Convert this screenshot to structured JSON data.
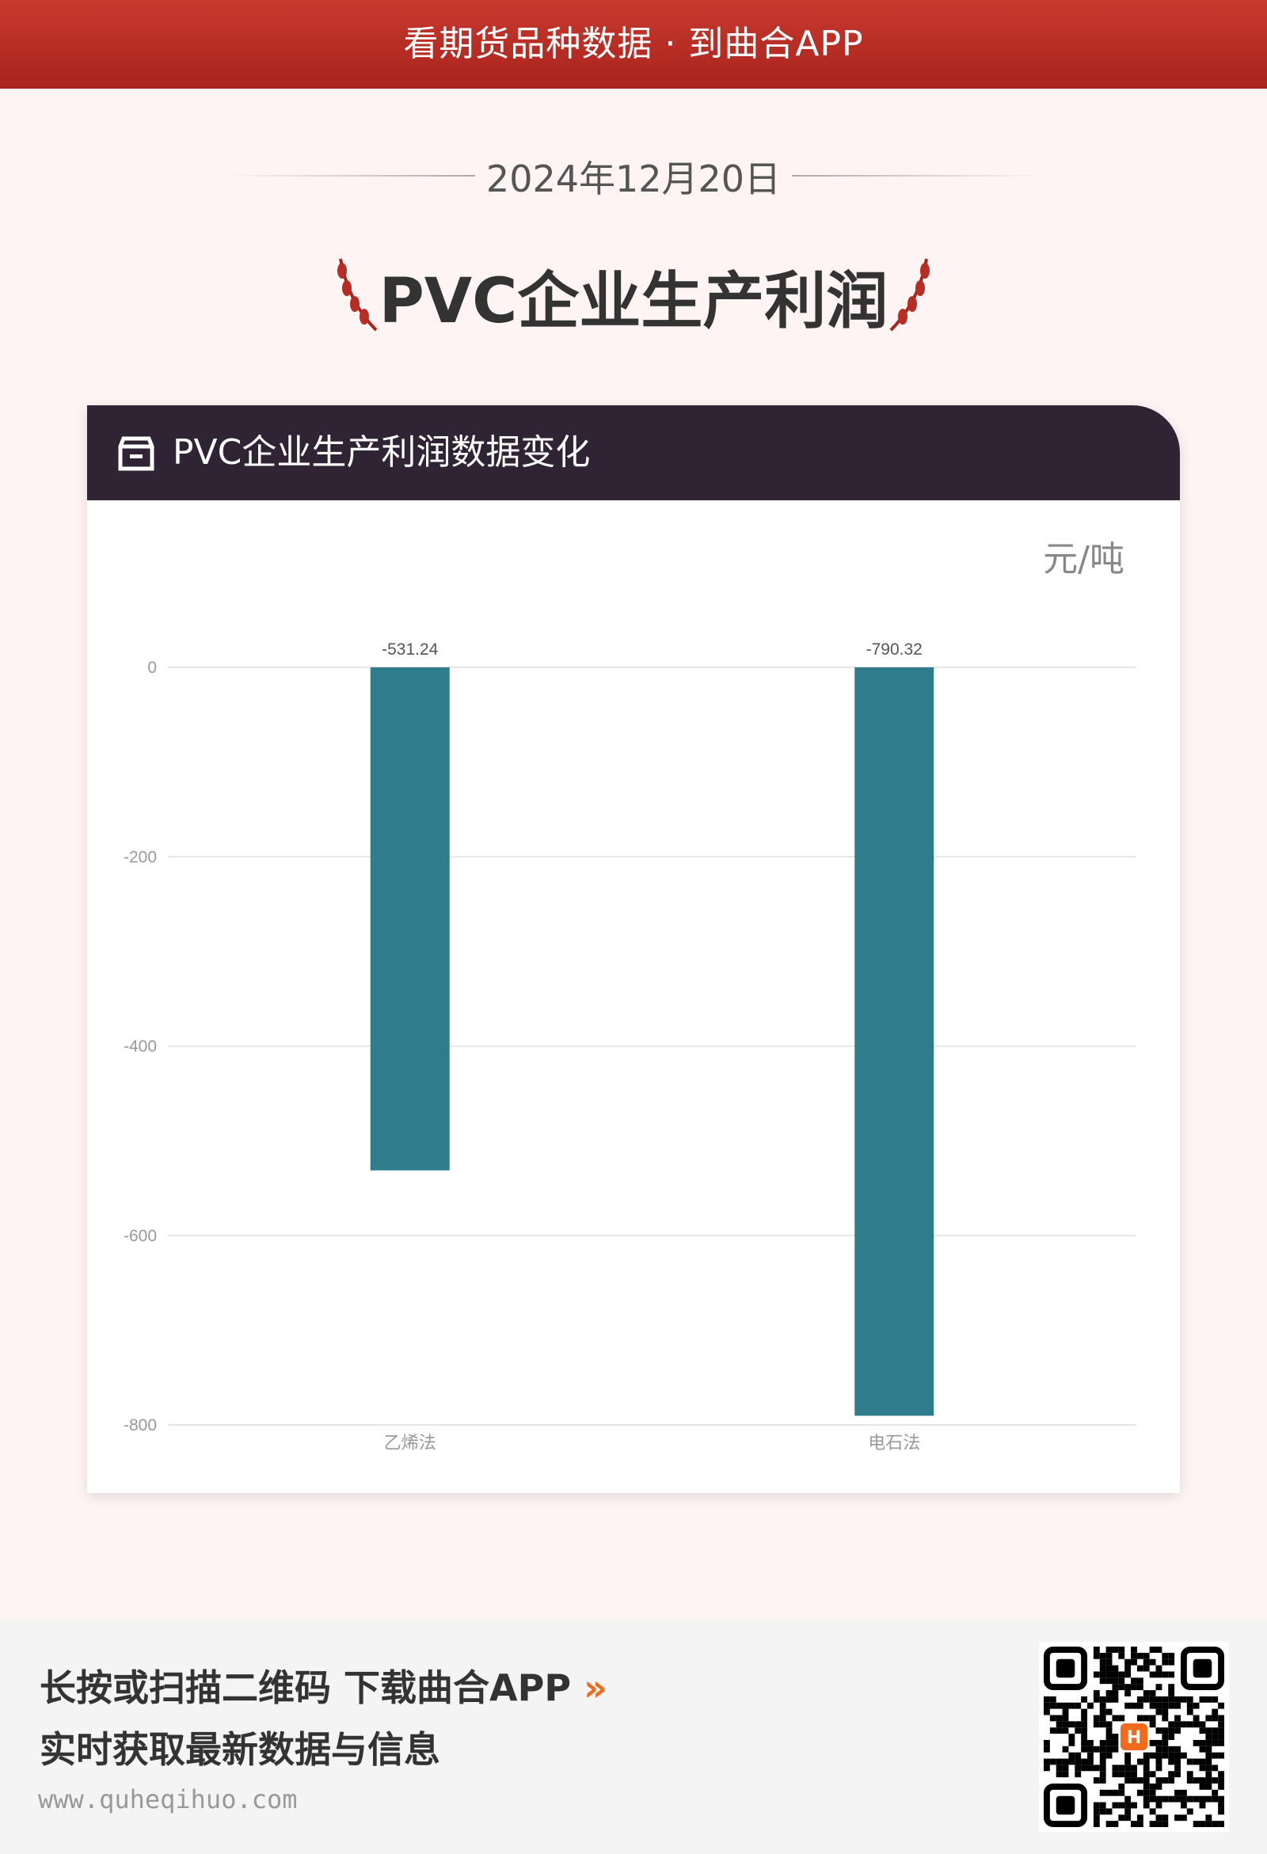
{
  "banner": {
    "text": "看期货品种数据 · 到曲合APP"
  },
  "date": "2024年12月20日",
  "title": "PVC企业生产利润",
  "card": {
    "title": "PVC企业生产利润数据变化",
    "unit": "元/吨"
  },
  "chart_data": {
    "type": "bar",
    "categories": [
      "乙烯法",
      "电石法"
    ],
    "values": [
      -531.24,
      -790.32
    ],
    "data_labels": [
      "-531.24",
      "-790.32"
    ],
    "ylim": [
      -800,
      0
    ],
    "yticks": [
      "0",
      "-200",
      "-400",
      "-600",
      "-800"
    ],
    "ylabel": "元/吨",
    "grid": true,
    "bar_color": "#2f7d8c"
  },
  "footer": {
    "line1": "长按或扫描二维码  下载曲合APP",
    "arrow": "»",
    "line2": "实时获取最新数据与信息",
    "url": "www.quheqihuo.com"
  },
  "colors": {
    "banner": "#b52d24",
    "card_header": "#2f2433",
    "accent": "#f26a1b"
  }
}
